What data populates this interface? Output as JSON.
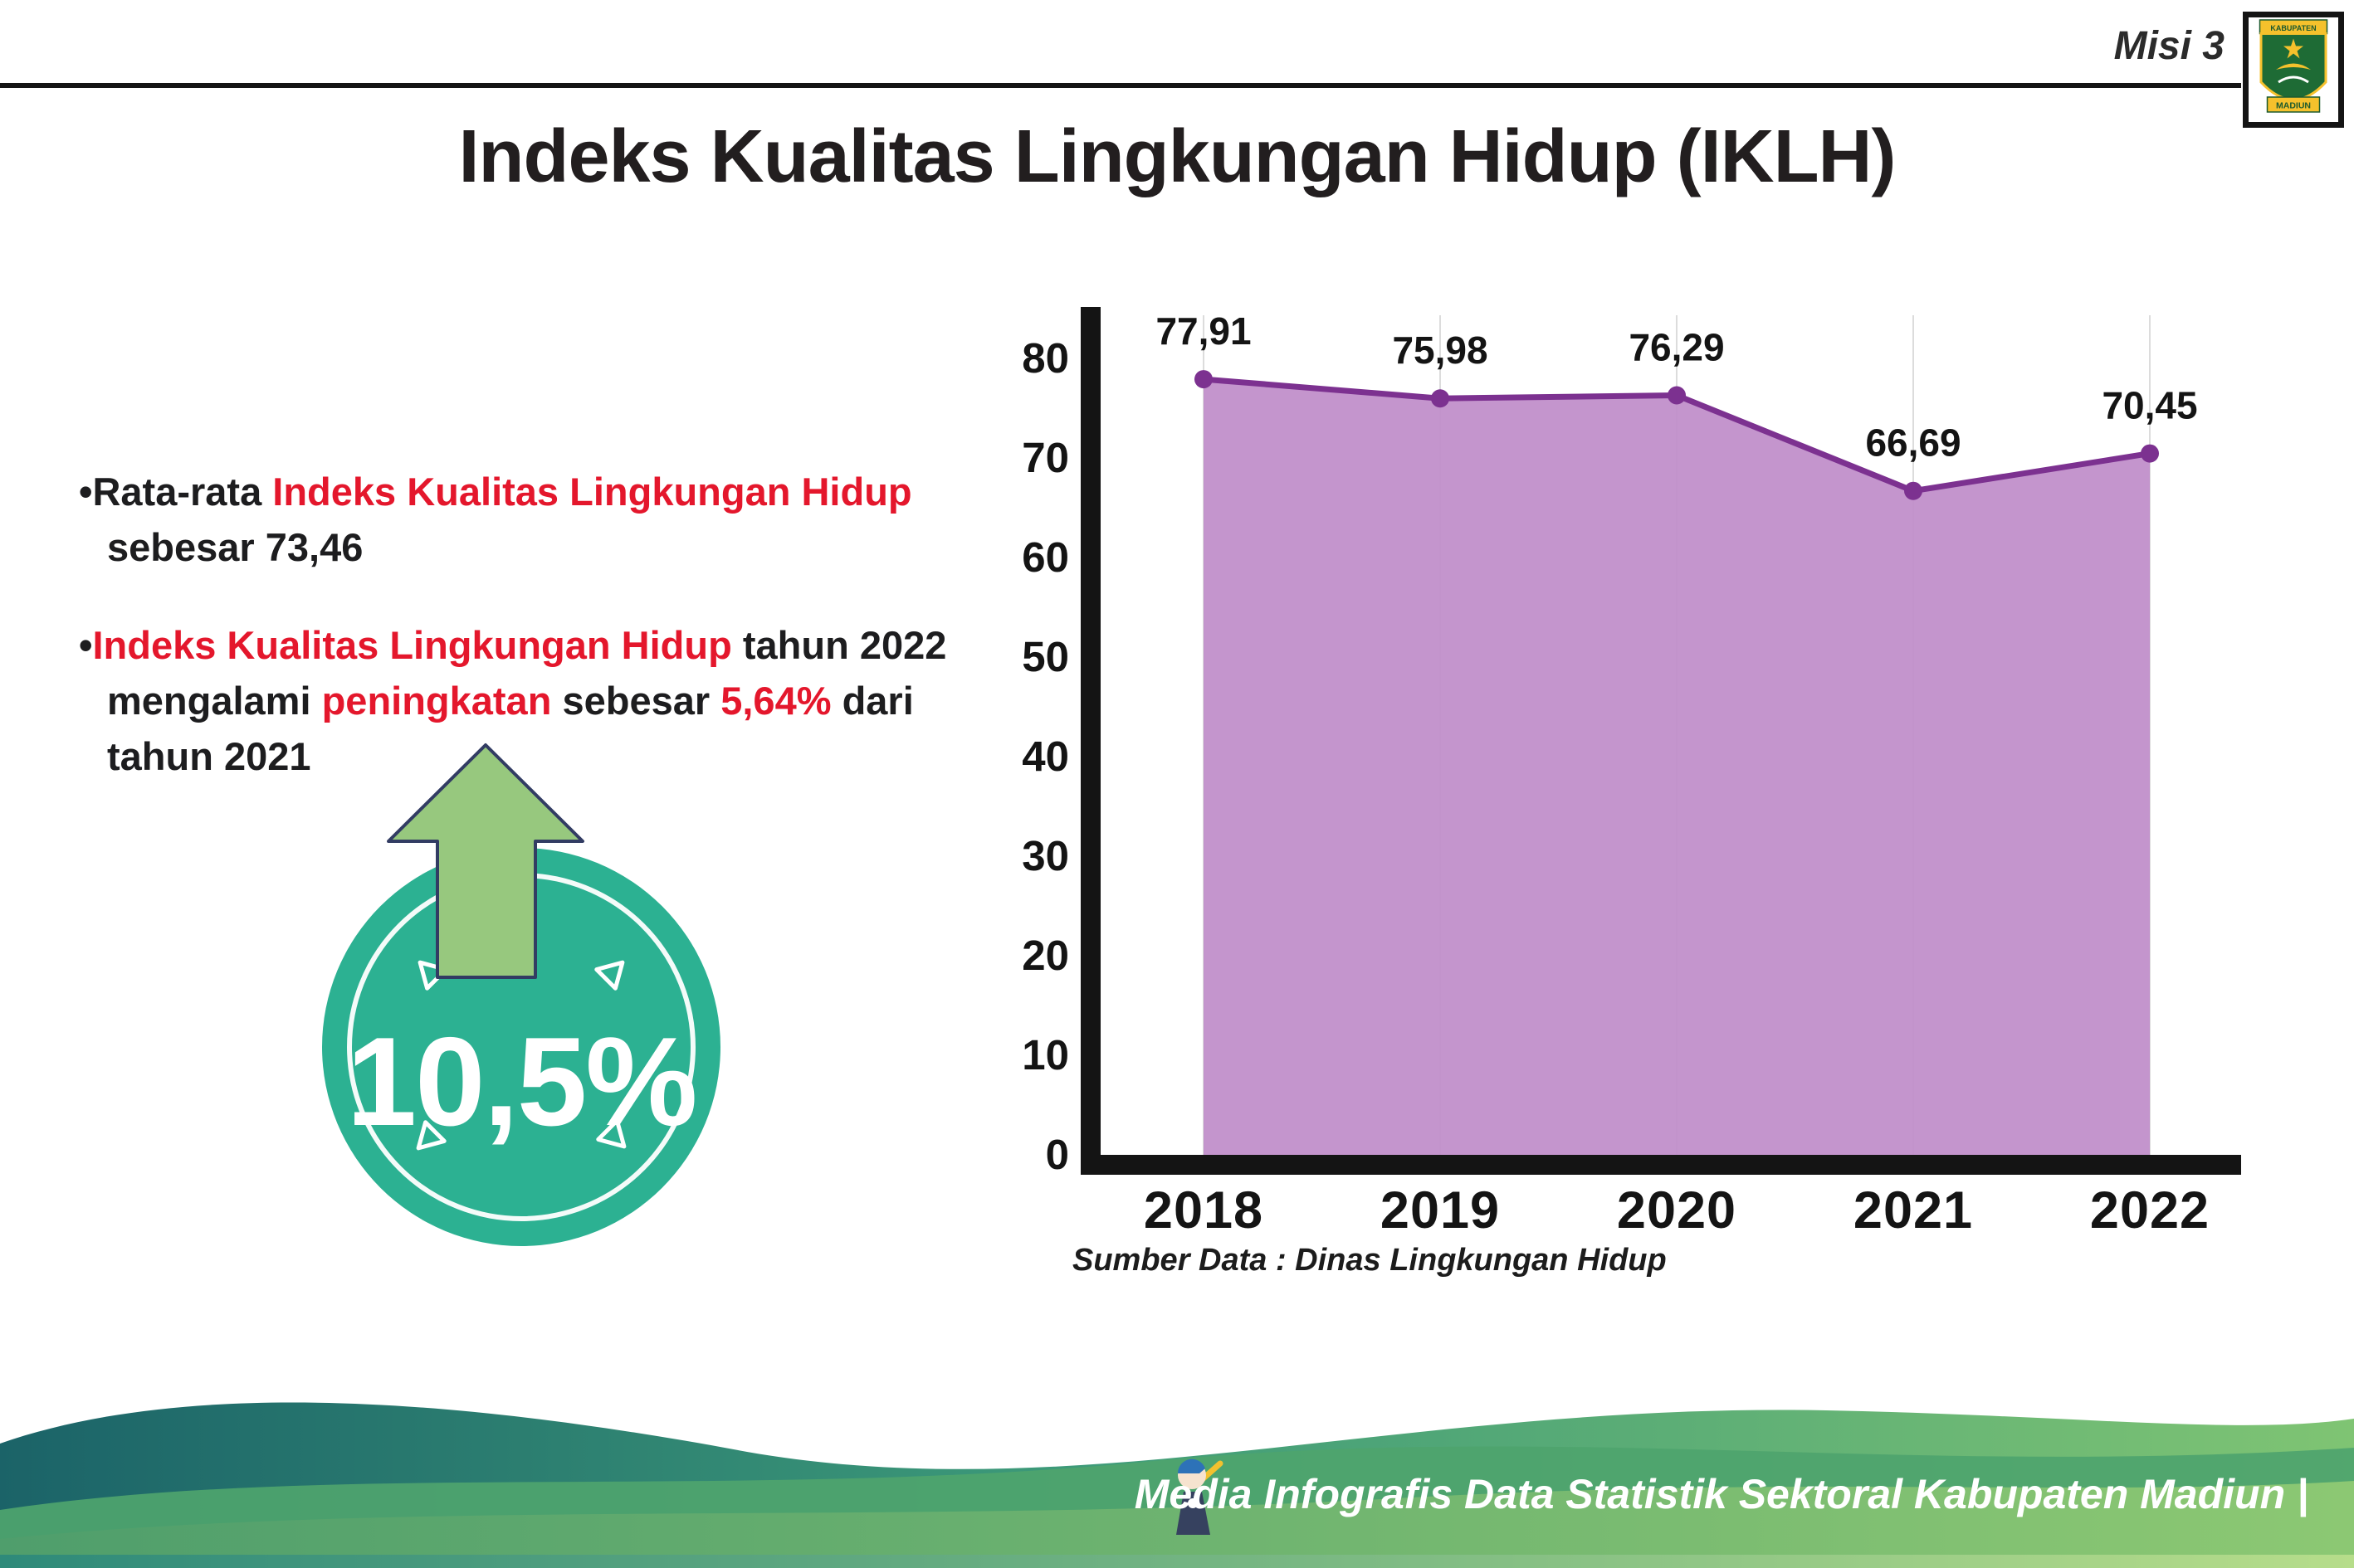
{
  "page": {
    "misi_label": "Misi 3",
    "title": "Indeks Kualitas Lingkungan Hidup (IKLH)",
    "bullet_char": "•"
  },
  "logo": {
    "top_text": "KABUPATEN",
    "bottom_text": "MADIUN"
  },
  "bullets": [
    {
      "parts": [
        {
          "text": "Rata-rata ",
          "color": "dark"
        },
        {
          "text": "Indeks Kualitas Lingkungan Hidup",
          "color": "red"
        },
        {
          "text": " sebesar 73,46",
          "color": "dark"
        }
      ]
    },
    {
      "parts": [
        {
          "text": "Indeks Kualitas Lingkungan Hidup",
          "color": "red"
        },
        {
          "text": " tahun 2022 mengalami ",
          "color": "dark"
        },
        {
          "text": "peningkatan",
          "color": "red"
        },
        {
          "text": " sebesar ",
          "color": "dark"
        },
        {
          "text": "5,64%",
          "color": "red"
        },
        {
          "text": " dari tahun 2021",
          "color": "dark"
        }
      ]
    }
  ],
  "badge": {
    "value": "10,5%"
  },
  "chart_data": {
    "type": "area",
    "categories": [
      "2018",
      "2019",
      "2020",
      "2021",
      "2022"
    ],
    "values": [
      77.91,
      75.98,
      76.29,
      66.69,
      70.45
    ],
    "value_labels": [
      "77,91",
      "75,98",
      "76,29",
      "66,69",
      "70,45"
    ],
    "ylim": [
      0,
      80
    ],
    "yticks": [
      0,
      10,
      20,
      30,
      40,
      50,
      60,
      70,
      80
    ],
    "grid": "vertical-light",
    "legend": "none",
    "line_color": "#7c3190",
    "fill_color": "#bf8cc9",
    "source_note": "Sumber Data : Dinas Lingkungan Hidup"
  },
  "footer": {
    "caption": "Media Infografis Data Statistik Sektoral Kabupaten Madiun |"
  },
  "colors": {
    "red_accent": "#e4172c",
    "badge_teal": "#2cb192",
    "arrow_green": "#97c87e",
    "arrow_outline": "#323c63",
    "axis_black": "#141414",
    "footer_teal": "#1b6368",
    "footer_green": "#7fc473"
  }
}
